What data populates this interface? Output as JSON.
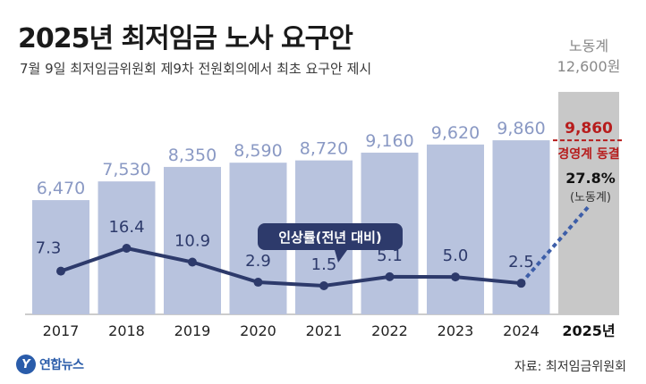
{
  "header": {
    "title": "2025년 최저임금 노사 요구안",
    "subtitle": "7월 9일 최저임금위원회 제9차 전원회의에서 최초 요구안 제시"
  },
  "chart_data": {
    "type": "bar",
    "categories": [
      "2017",
      "2018",
      "2019",
      "2020",
      "2021",
      "2022",
      "2023",
      "2024"
    ],
    "values": [
      6470,
      7530,
      8350,
      8590,
      8720,
      9160,
      9620,
      9860
    ],
    "value_labels": [
      "6,470",
      "7,530",
      "8,350",
      "8,590",
      "8,720",
      "9,160",
      "9,620",
      "9,860"
    ],
    "ylim": [
      0,
      13000
    ],
    "bar_color": "#b8c3de",
    "line_series": {
      "name": "인상률(전년 대비)",
      "values": [
        7.3,
        16.4,
        10.9,
        2.9,
        1.5,
        5.1,
        5.0,
        2.5
      ],
      "labels": [
        "7.3",
        "16.4",
        "10.9",
        "2.9",
        "1.5",
        "5.1",
        "5.0",
        "2.5"
      ],
      "color": "#2d3a6b"
    },
    "proposal": {
      "category": "2025년",
      "labor_label": "노동계",
      "labor_value": 12600,
      "labor_value_label": "12,600원",
      "labor_bar_color": "#c8c8c8",
      "employer_value": 9860,
      "employer_value_label": "9,860",
      "employer_label": "경영계 동결",
      "employer_color": "#b71c1c",
      "labor_rate": 27.8,
      "labor_rate_label": "27.8%",
      "labor_rate_sub": "(노동계)"
    }
  },
  "footer": {
    "logo_glyph": "Y",
    "logo_text": "연합뉴스",
    "source": "자료: 최저임금위원회"
  }
}
